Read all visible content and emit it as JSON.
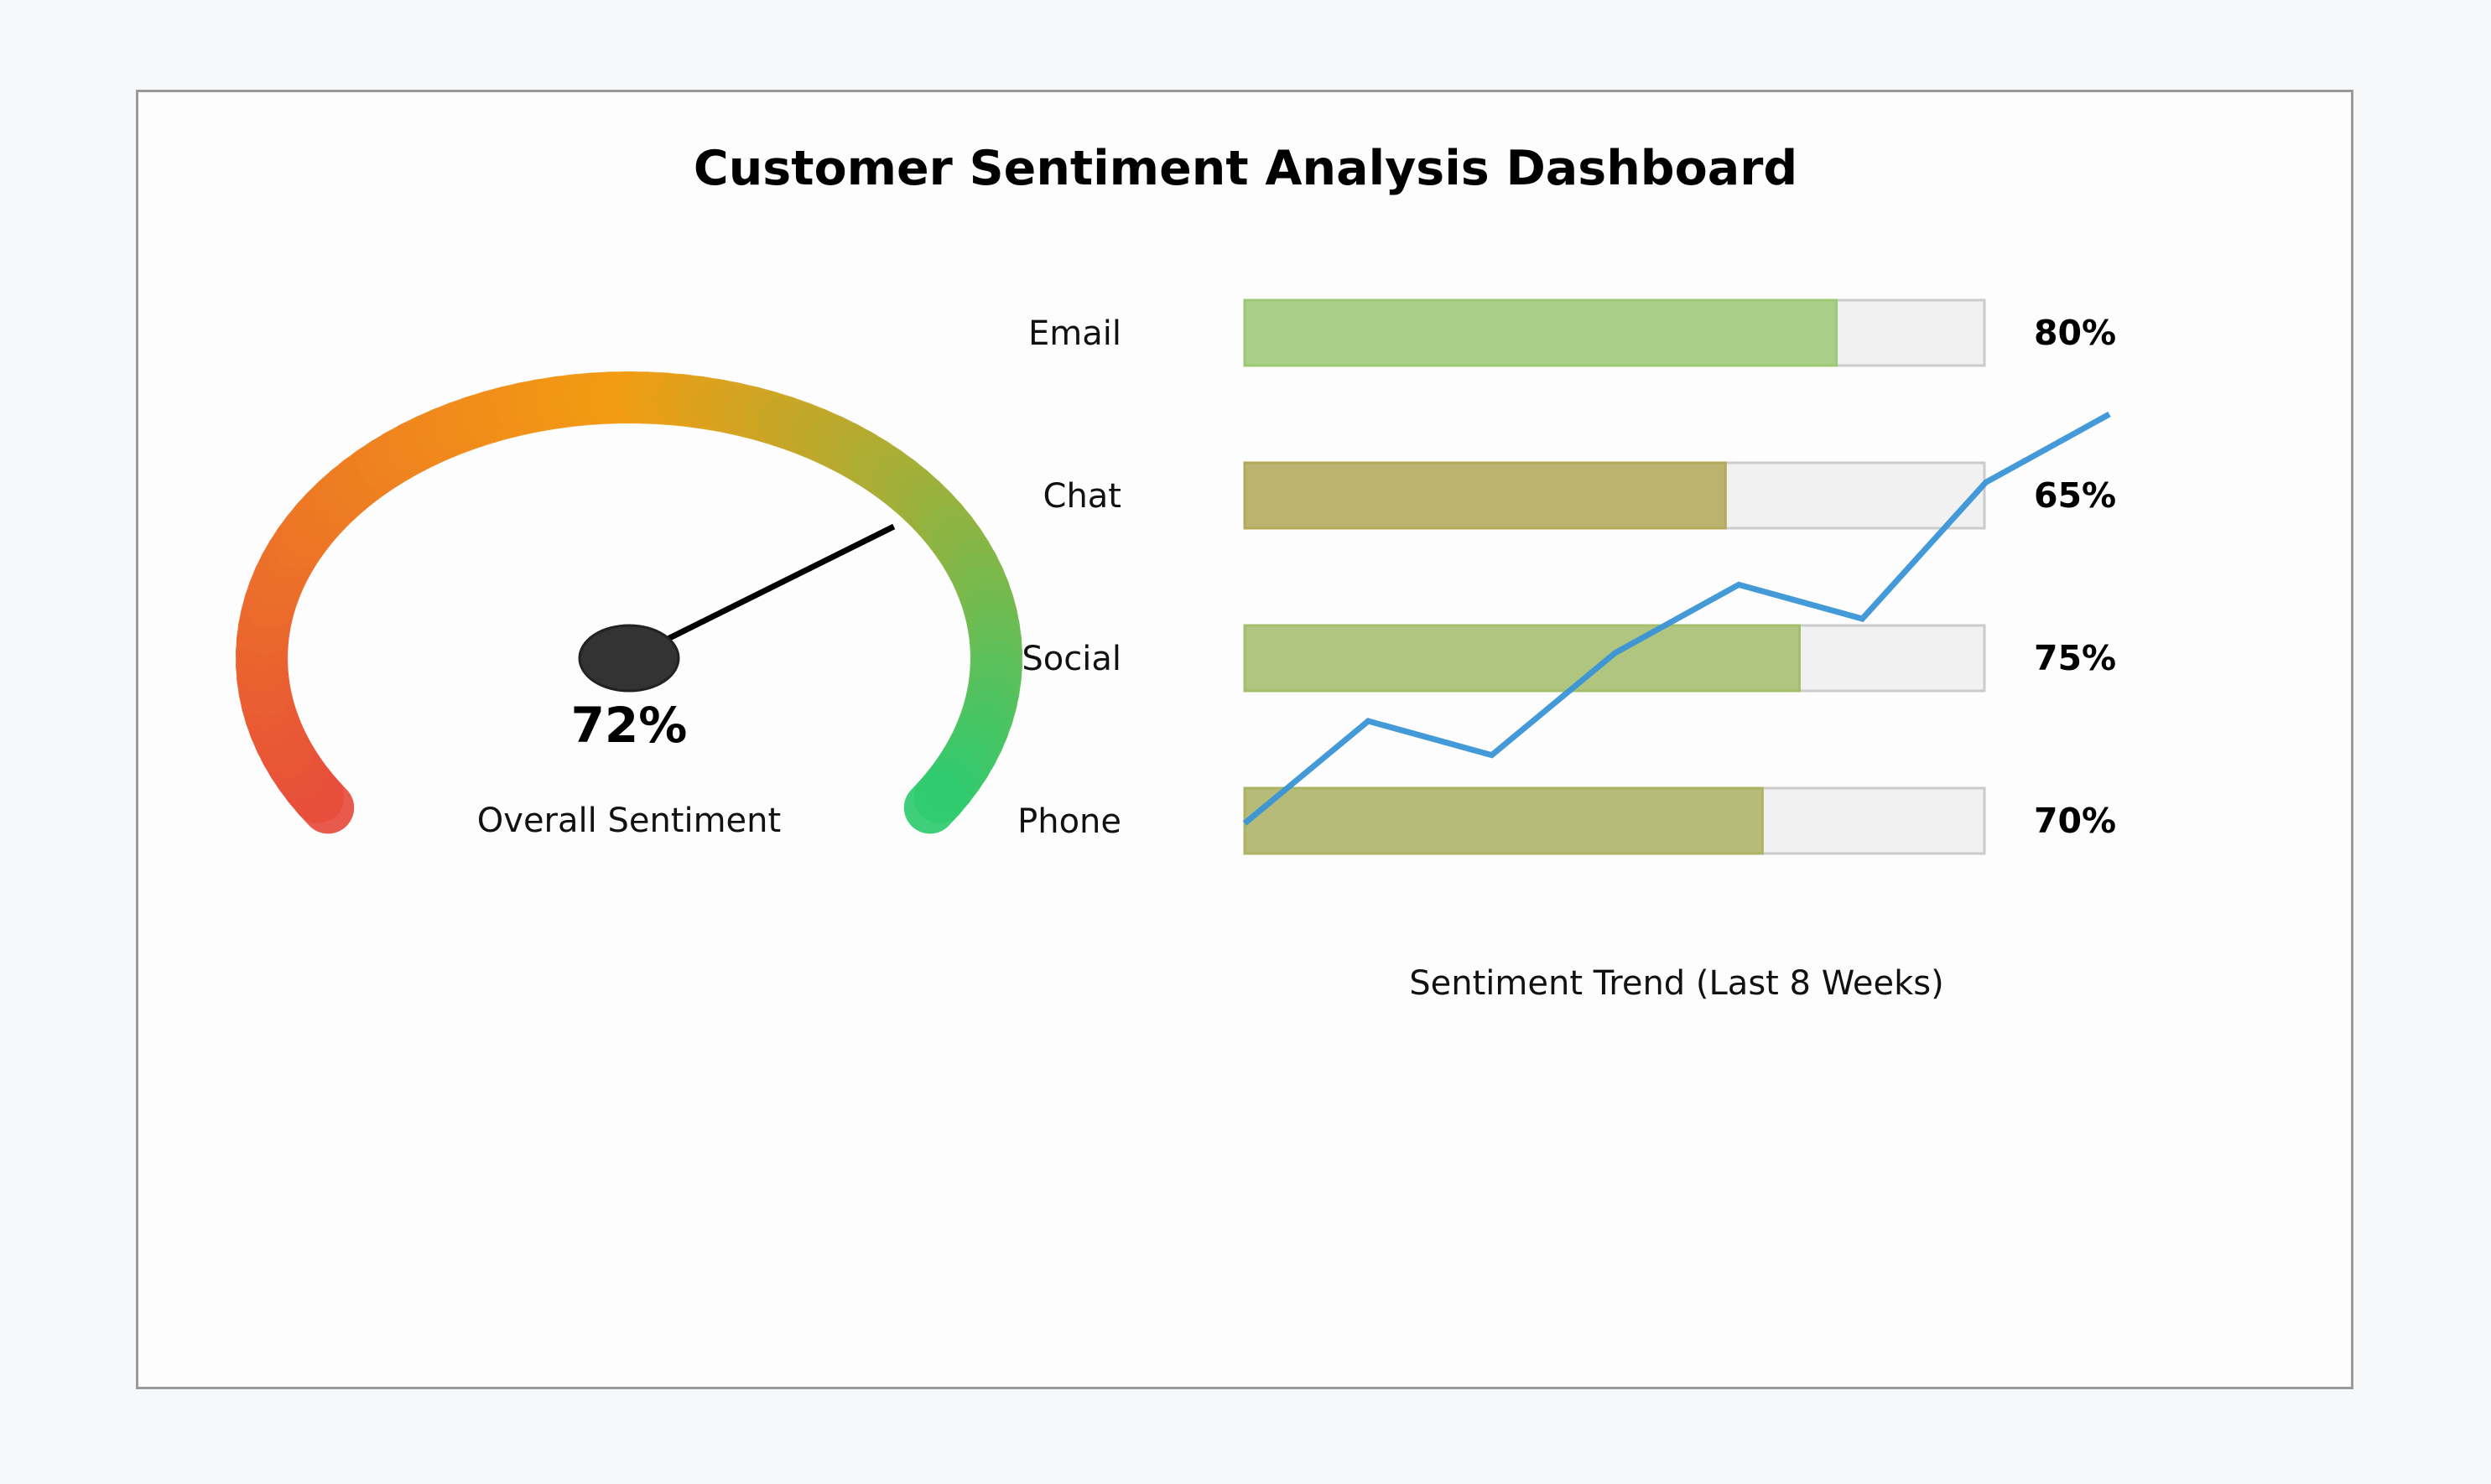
{
  "title": "Customer Sentiment Analysis Dashboard",
  "chart_data": [
    {
      "type": "gauge",
      "value": 72,
      "value_label": "72%",
      "label": "Overall Sentiment",
      "range": [
        0,
        100
      ],
      "colors": {
        "low": "#e74c3c",
        "mid": "#f39c12",
        "high": "#2ecc71",
        "needle": "#000000",
        "hub": "#333333"
      }
    },
    {
      "type": "bar",
      "orientation": "horizontal",
      "categories": [
        "Email",
        "Chat",
        "Social",
        "Phone"
      ],
      "values": [
        80,
        65,
        75,
        70
      ],
      "value_labels": [
        "80%",
        "65%",
        "75%",
        "70%"
      ],
      "xlim": [
        0,
        100
      ],
      "colors": {
        "track": "#f0f1f0",
        "track_border": "#cccccc"
      }
    },
    {
      "type": "line",
      "title": "Sentiment Trend (Last 8 Weeks)",
      "x": [
        1,
        2,
        3,
        4,
        5,
        6,
        7,
        8
      ],
      "values": [
        62,
        65,
        64,
        67,
        69,
        68,
        72,
        74
      ],
      "ylim": [
        62,
        74
      ],
      "color": "#3a93d6"
    }
  ]
}
